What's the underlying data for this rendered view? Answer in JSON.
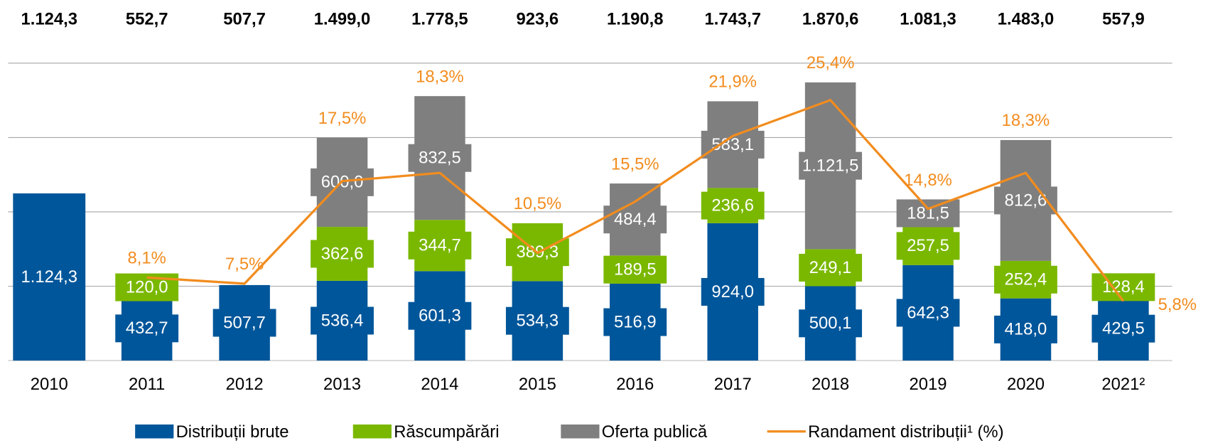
{
  "chart_data": {
    "type": "bar",
    "stacked": true,
    "categories": [
      "2010",
      "2011",
      "2012",
      "2013",
      "2014",
      "2015",
      "2016",
      "2017",
      "2018",
      "2019",
      "2020",
      "2021²"
    ],
    "totals": [
      "1.124,3",
      "552,7",
      "507,7",
      "1.499,0",
      "1.778,5",
      "923,6",
      "1.190,8",
      "1.743,7",
      "1.870,6",
      "1.081,3",
      "1.483,0",
      "557,9"
    ],
    "series": [
      {
        "name": "Distribuții brute",
        "color": "#00569a",
        "type": "bar",
        "values": [
          1124.3,
          432.7,
          507.7,
          536.4,
          601.3,
          534.3,
          516.9,
          924.0,
          500.1,
          642.3,
          418.0,
          429.5
        ],
        "value_labels": [
          "1.124,3",
          "432,7",
          "507,7",
          "536,4",
          "601,3",
          "534,3",
          "516,9",
          "924,0",
          "500,1",
          "642,3",
          "418,0",
          "429,5"
        ]
      },
      {
        "name": "Răscumpărări",
        "color": "#7ab800",
        "type": "bar",
        "values": [
          null,
          120.0,
          null,
          362.6,
          344.7,
          389.3,
          189.5,
          236.6,
          249.1,
          257.5,
          252.4,
          128.4
        ],
        "value_labels": [
          null,
          "120,0",
          null,
          "362,6",
          "344,7",
          "389,3",
          "189,5",
          "236,6",
          "249,1",
          "257,5",
          "252,4",
          "128,4"
        ]
      },
      {
        "name": "Oferta publică",
        "color": "#7f7f7f",
        "type": "bar",
        "values": [
          null,
          null,
          null,
          600.0,
          832.5,
          null,
          484.4,
          583.1,
          1121.5,
          181.5,
          812.6,
          null
        ],
        "value_labels": [
          null,
          null,
          null,
          "600,0",
          "832,5",
          null,
          "484,4",
          "583,1",
          "1.121,5",
          "181,5",
          "812,6",
          null
        ]
      },
      {
        "name": "Randament distribuții¹ (%)",
        "color": "#f28c1e",
        "type": "line",
        "axis": "y2",
        "values": [
          null,
          8.1,
          7.5,
          17.5,
          18.3,
          10.5,
          15.5,
          21.9,
          25.4,
          14.8,
          18.3,
          5.8
        ],
        "value_labels": [
          null,
          "8,1%",
          "7,5%",
          "17,5%",
          "18,3%",
          "10,5%",
          "15,5%",
          "21,9%",
          "25,4%",
          "14,8%",
          "18,3%",
          "5,8%"
        ]
      }
    ],
    "ylim": [
      0,
      2000
    ],
    "yticks": [
      0,
      500,
      1000,
      1500,
      2000
    ],
    "y2lim": [
      0,
      29
    ],
    "grid": true,
    "legend": "bottom"
  }
}
